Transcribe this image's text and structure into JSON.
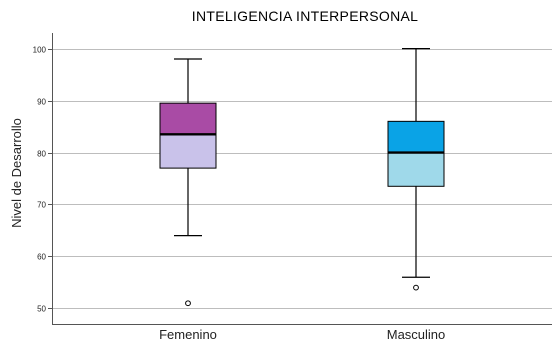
{
  "chart_data": {
    "type": "boxplot",
    "title": "INTELIGENCIA INTERPERSONAL",
    "xlabel": "",
    "ylabel": "Nivel de Desarrollo",
    "ylim": [
      47,
      103
    ],
    "yticks": [
      50,
      60,
      70,
      80,
      90,
      100
    ],
    "grid": true,
    "categories": [
      "Femenino",
      "Masculino"
    ],
    "boxes": [
      {
        "category": "Femenino",
        "whisker_low": 64,
        "q1": 77,
        "median": 83.5,
        "q3": 89.5,
        "whisker_high": 98,
        "outliers": [
          51
        ],
        "color_upper": "#a94ba5",
        "color_lower": "#c9c2ea"
      },
      {
        "category": "Masculino",
        "whisker_low": 56,
        "q1": 73.5,
        "median": 80,
        "q3": 86,
        "whisker_high": 100,
        "outliers": [
          54
        ],
        "color_upper": "#0aa3e6",
        "color_lower": "#9fd9ea"
      }
    ]
  }
}
